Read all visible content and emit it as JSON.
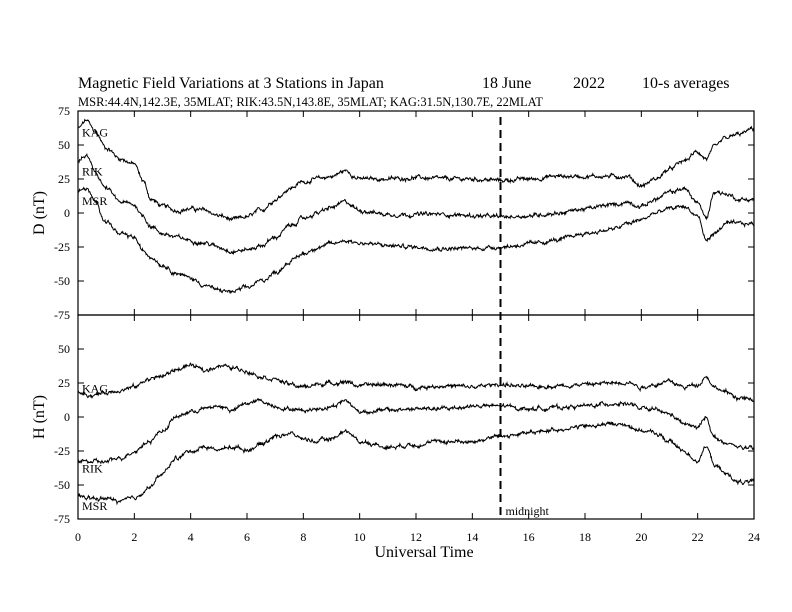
{
  "chart_data": {
    "type": "line",
    "title": "Magnetic Field Variations at 3 Stations in Japan",
    "date": "18 June",
    "year": "2022",
    "averaging": "10-s averages",
    "stations_info": "MSR:44.4N,142.3E, 35MLAT;  RIK:43.5N,143.8E, 35MLAT;  KAG:31.5N,130.7E, 22MLAT",
    "xlabel": "Universal Time",
    "xlim": [
      0,
      24
    ],
    "xticks": [
      0,
      2,
      4,
      6,
      8,
      10,
      12,
      14,
      16,
      18,
      20,
      22,
      24
    ],
    "midnight_ut": 15,
    "midnight_label": "midnight",
    "panels": [
      {
        "id": "D",
        "ylabel": "D (nT)",
        "ylim": [
          -75,
          75
        ],
        "yticks": [
          75,
          50,
          25,
          0,
          -25,
          -50,
          -75
        ],
        "series": [
          {
            "name": "KAG",
            "x": [
              0,
              0.3,
              0.6,
              1,
              1.5,
              2,
              2.3,
              2.6,
              3,
              3.5,
              4,
              4.5,
              5,
              5.5,
              6,
              6.5,
              7,
              7.5,
              8,
              8.5,
              9,
              9.5,
              10,
              11,
              12,
              13,
              14,
              15,
              16,
              17,
              18,
              19,
              19.5,
              20,
              20.5,
              21,
              21.5,
              22,
              22.3,
              22.6,
              23,
              23.5,
              24
            ],
            "y": [
              62,
              68,
              60,
              48,
              40,
              36,
              24,
              10,
              5,
              2,
              3,
              2,
              -2,
              -5,
              -3,
              2,
              10,
              18,
              23,
              25,
              27,
              31,
              25,
              25,
              26,
              25,
              25,
              24,
              25,
              27,
              27,
              27,
              27,
              20,
              25,
              32,
              38,
              45,
              40,
              48,
              55,
              58,
              62
            ]
          },
          {
            "name": "RIK",
            "x": [
              0,
              0.3,
              0.6,
              1,
              1.5,
              2,
              2.3,
              2.6,
              3,
              3.5,
              4,
              4.5,
              5,
              5.5,
              6,
              6.5,
              7,
              7.5,
              8,
              8.5,
              9,
              9.5,
              10,
              11,
              12,
              13,
              14,
              15,
              16,
              17,
              18,
              19,
              19.5,
              20,
              20.5,
              21,
              21.5,
              22,
              22.3,
              22.6,
              23,
              23.5,
              24
            ],
            "y": [
              38,
              42,
              30,
              18,
              8,
              6,
              -2,
              -10,
              -15,
              -18,
              -20,
              -22,
              -25,
              -28,
              -27,
              -24,
              -18,
              -10,
              -4,
              0,
              4,
              8,
              2,
              -1,
              -1,
              -1,
              -2,
              -3,
              -2,
              0,
              3,
              6,
              8,
              5,
              10,
              15,
              18,
              8,
              -4,
              16,
              14,
              10,
              10
            ]
          },
          {
            "name": "MSR",
            "x": [
              0,
              0.3,
              0.6,
              1,
              1.5,
              2,
              2.3,
              2.6,
              3,
              3.5,
              4,
              4.5,
              5,
              5.5,
              6,
              6.5,
              7,
              7.5,
              8,
              8.5,
              9,
              9.5,
              10,
              11,
              12,
              13,
              14,
              15,
              16,
              17,
              18,
              19,
              19.5,
              20,
              20.5,
              21,
              21.5,
              22,
              22.3,
              22.6,
              23,
              23.5,
              24
            ],
            "y": [
              16,
              18,
              8,
              -6,
              -16,
              -18,
              -28,
              -32,
              -38,
              -44,
              -48,
              -53,
              -57,
              -58,
              -55,
              -50,
              -44,
              -36,
              -30,
              -25,
              -23,
              -20,
              -22,
              -24,
              -25,
              -26,
              -26,
              -25,
              -23,
              -20,
              -15,
              -12,
              -8,
              -5,
              0,
              3,
              5,
              -2,
              -20,
              -15,
              -8,
              -8,
              -8
            ]
          }
        ]
      },
      {
        "id": "H",
        "ylabel": "H (nT)",
        "ylim": [
          -75,
          75
        ],
        "yticks": [
          50,
          25,
          0,
          -25,
          -50,
          -75
        ],
        "series": [
          {
            "name": "KAG",
            "x": [
              0,
              0.5,
              1,
              1.5,
              2,
              2.5,
              3,
              3.5,
              4,
              4.5,
              5,
              5.5,
              6,
              6.5,
              7,
              7.5,
              8,
              8.5,
              9,
              9.5,
              10,
              11,
              12,
              13,
              14,
              15,
              16,
              17,
              18,
              19,
              19.5,
              20,
              20.5,
              21,
              21.5,
              22,
              22.3,
              22.6,
              23,
              23.5,
              24
            ],
            "y": [
              18,
              16,
              18,
              20,
              22,
              28,
              30,
              35,
              38,
              34,
              38,
              36,
              34,
              30,
              28,
              24,
              22,
              24,
              25,
              26,
              23,
              24,
              22,
              23,
              22,
              24,
              22,
              23,
              24,
              25,
              26,
              22,
              24,
              26,
              22,
              24,
              30,
              22,
              18,
              14,
              12
            ]
          },
          {
            "name": "RIK",
            "x": [
              0,
              0.5,
              1,
              1.5,
              2,
              2.5,
              3,
              3.5,
              4,
              4.5,
              5,
              5.5,
              6,
              6.5,
              7,
              7.5,
              8,
              8.5,
              9,
              9.5,
              10,
              11,
              12,
              13,
              14,
              15,
              16,
              17,
              18,
              19,
              19.5,
              20,
              20.5,
              21,
              21.5,
              22,
              22.3,
              22.6,
              23,
              23.5,
              24
            ],
            "y": [
              -32,
              -33,
              -33,
              -30,
              -25,
              -18,
              -10,
              0,
              4,
              6,
              8,
              5,
              10,
              12,
              8,
              6,
              5,
              6,
              8,
              12,
              4,
              5,
              6,
              6,
              8,
              8,
              6,
              7,
              8,
              10,
              10,
              6,
              5,
              2,
              -5,
              -8,
              0,
              -15,
              -20,
              -22,
              -24
            ]
          },
          {
            "name": "MSR",
            "x": [
              0,
              0.5,
              1,
              1.5,
              2,
              2.5,
              3,
              3.5,
              4,
              4.5,
              5,
              5.5,
              6,
              6.5,
              7,
              7.5,
              8,
              8.5,
              9,
              9.5,
              10,
              11,
              12,
              13,
              14,
              15,
              16,
              17,
              18,
              19,
              19.5,
              20,
              20.5,
              21,
              21.5,
              22,
              22.3,
              22.6,
              23,
              23.5,
              24
            ],
            "y": [
              -58,
              -60,
              -60,
              -62,
              -60,
              -52,
              -42,
              -30,
              -25,
              -22,
              -24,
              -22,
              -24,
              -20,
              -14,
              -12,
              -16,
              -18,
              -16,
              -10,
              -18,
              -22,
              -20,
              -18,
              -18,
              -14,
              -12,
              -9,
              -7,
              -5,
              -6,
              -10,
              -12,
              -18,
              -25,
              -32,
              -22,
              -35,
              -42,
              -48,
              -48
            ]
          }
        ]
      }
    ]
  }
}
